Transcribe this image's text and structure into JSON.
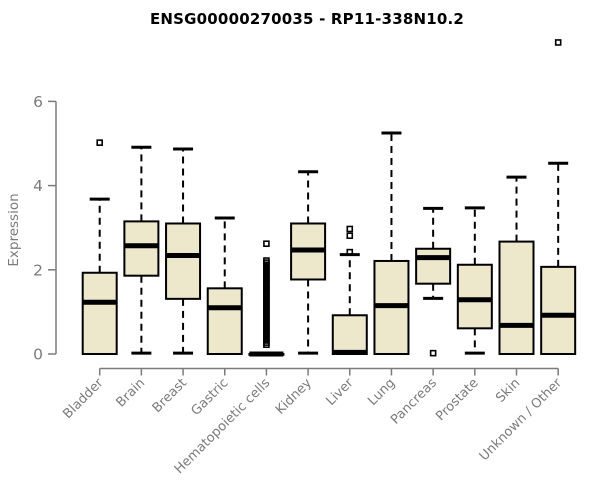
{
  "title": "ENSG00000270035 - RP11-338N10.2",
  "chart_data": {
    "type": "boxplot",
    "title": "ENSG00000270035 - RP11-338N10.2",
    "xlabel": "",
    "ylabel": "Expression",
    "ylim": [
      0,
      6
    ],
    "yticks": [
      0,
      2,
      4,
      6
    ],
    "grid": false,
    "legend": "none",
    "categories": [
      "Bladder",
      "Brain",
      "Breast",
      "Gastric",
      "Hematopoietic cells",
      "Kidney",
      "Liver",
      "Lung",
      "Pancreas",
      "Prostate",
      "Skin",
      "Unknown / Other"
    ],
    "boxes": [
      {
        "label": "Bladder",
        "q1": 0,
        "median": 1.23,
        "q3": 1.93,
        "whisker_low": 0,
        "whisker_high": 3.68,
        "outliers": [
          5.02
        ]
      },
      {
        "label": "Brain",
        "q1": 1.86,
        "median": 2.57,
        "q3": 3.15,
        "whisker_low": 0.02,
        "whisker_high": 4.91,
        "outliers": []
      },
      {
        "label": "Breast",
        "q1": 1.31,
        "median": 2.34,
        "q3": 3.1,
        "whisker_low": 0.02,
        "whisker_high": 4.87,
        "outliers": []
      },
      {
        "label": "Gastric",
        "q1": 0,
        "median": 1.1,
        "q3": 1.56,
        "whisker_low": 0,
        "whisker_high": 3.23,
        "outliers": []
      },
      {
        "label": "Hematopoietic cells",
        "q1": 0,
        "median": 0,
        "q3": 0,
        "whisker_low": 0,
        "whisker_high": 0,
        "outliers": [
          2.62,
          2.22,
          2.17,
          2.12,
          2.07,
          2.02,
          1.97,
          1.92,
          1.87,
          1.82,
          1.77,
          1.72,
          1.67,
          1.62,
          1.57,
          1.52,
          1.47,
          1.42,
          1.37,
          1.32,
          1.27,
          1.22,
          1.17,
          1.12,
          1.07,
          1.02,
          0.97,
          0.92,
          0.87,
          0.82,
          0.77,
          0.72,
          0.67,
          0.62,
          0.57,
          0.52,
          0.47,
          0.42,
          0.37,
          0.32,
          0.27,
          0.22
        ]
      },
      {
        "label": "Kidney",
        "q1": 1.77,
        "median": 2.47,
        "q3": 3.1,
        "whisker_low": 0.02,
        "whisker_high": 4.33,
        "outliers": []
      },
      {
        "label": "Liver",
        "q1": 0,
        "median": 0.04,
        "q3": 0.92,
        "whisker_low": 0,
        "whisker_high": 2.36,
        "outliers": [
          2.42,
          2.81,
          2.97
        ]
      },
      {
        "label": "Lung",
        "q1": 0,
        "median": 1.15,
        "q3": 2.21,
        "whisker_low": 0,
        "whisker_high": 5.25,
        "outliers": []
      },
      {
        "label": "Pancreas",
        "q1": 1.67,
        "median": 2.29,
        "q3": 2.5,
        "whisker_low": 1.32,
        "whisker_high": 3.46,
        "outliers": [
          0.02
        ]
      },
      {
        "label": "Prostate",
        "q1": 0.61,
        "median": 1.29,
        "q3": 2.12,
        "whisker_low": 0.02,
        "whisker_high": 3.47,
        "outliers": []
      },
      {
        "label": "Skin",
        "q1": 0,
        "median": 0.68,
        "q3": 2.67,
        "whisker_low": 0,
        "whisker_high": 4.2,
        "outliers": []
      },
      {
        "label": "Unknown / Other",
        "q1": 0,
        "median": 0.92,
        "q3": 2.07,
        "whisker_low": 0,
        "whisker_high": 4.53,
        "outliers": [
          7.4
        ]
      }
    ],
    "colors": {
      "box_fill": "#EDE7CB",
      "box_stroke": "#000000",
      "median": "#000000",
      "whisker": "#000000",
      "outlier": "#000000",
      "axis": "#7b7b7b",
      "tick_label": "#7b7b7b",
      "category_label": "#7b7b7b",
      "title": "#000000",
      "background": "#FFFFFF"
    }
  }
}
